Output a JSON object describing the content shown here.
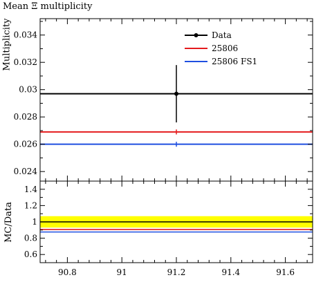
{
  "chart_data": {
    "title": "Mean Ξ multiplicity",
    "main": {
      "type": "scatter",
      "ylabel": "Multiplicity",
      "ylim": [
        0.0233,
        0.0352
      ],
      "yticks": [
        0.024,
        0.026,
        0.028,
        0.03,
        0.032,
        0.034
      ],
      "yticklabels": [
        "0.024",
        "0.026",
        "0.028",
        "0.03",
        "0.032",
        "0.034"
      ],
      "series": [
        {
          "name": "Data",
          "color": "#000000",
          "x": 91.2,
          "y": 0.0297,
          "yerr_low": 0.0021,
          "yerr_high": 0.0021,
          "markers": true
        },
        {
          "name": "25806",
          "color": "#e41a1c",
          "x": 91.2,
          "y": 0.0269,
          "yerr_low": 8e-05,
          "yerr_high": 8e-05,
          "markers": false
        },
        {
          "name": "25806 FS1",
          "color": "#1f4fe0",
          "x": 91.2,
          "y": 0.026,
          "yerr_low": 8e-05,
          "yerr_high": 8e-05,
          "markers": false
        }
      ],
      "legend": "top-right"
    },
    "ratio": {
      "type": "line",
      "ylabel": "MC/Data",
      "ylim": [
        0.5,
        1.5
      ],
      "yticks": [
        0.6,
        0.8,
        1.0,
        1.2,
        1.4
      ],
      "yticklabels": [
        "0.6",
        "0.8",
        "1",
        "1.2",
        "1.4"
      ],
      "band": {
        "low": 0.93,
        "high": 1.07,
        "color": "#ffff00"
      },
      "series": [
        {
          "name": "Data",
          "color": "#000000",
          "y": 1.0
        },
        {
          "name": "25806",
          "color": "#e41a1c",
          "y": 0.906
        },
        {
          "name": "25806 FS1",
          "color": "#1f4fe0",
          "y": 0.876
        }
      ]
    },
    "xlim": [
      90.7,
      91.7
    ],
    "xticks": [
      90.8,
      91.0,
      91.2,
      91.4,
      91.6
    ],
    "xticklabels": [
      "90.8",
      "91",
      "91.2",
      "91.4",
      "91.6"
    ]
  }
}
